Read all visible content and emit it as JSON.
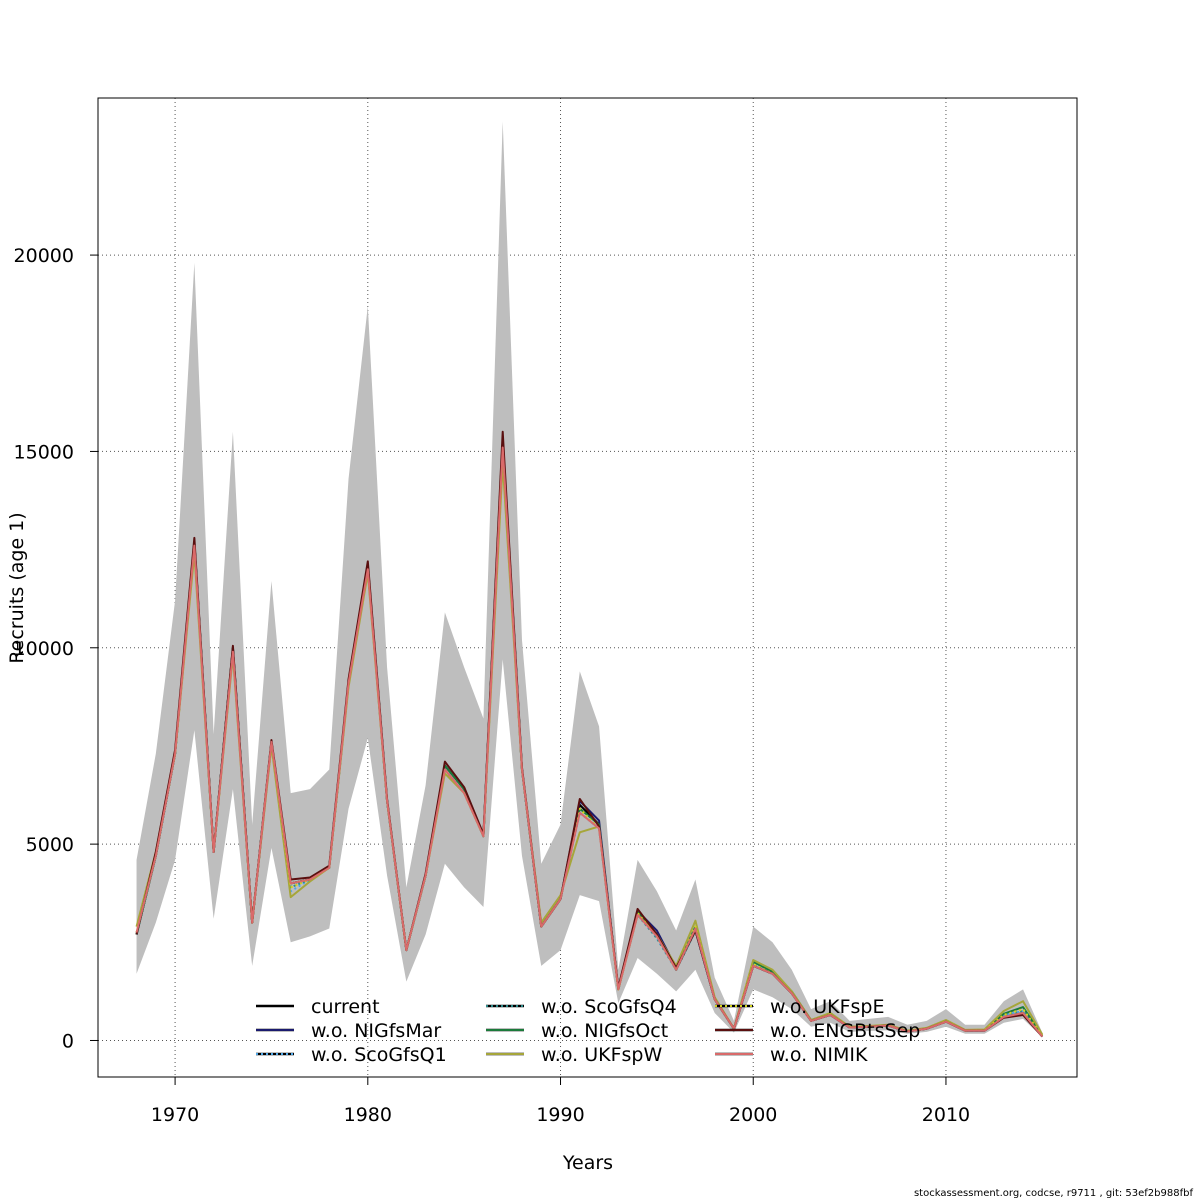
{
  "chart_data": {
    "type": "line",
    "title": "",
    "xlabel": "Years",
    "ylabel": "Recruits (age 1)",
    "xlim": [
      1966,
      2016.8
    ],
    "ylim": [
      -930,
      24000
    ],
    "x_ticks": [
      1970,
      1980,
      1990,
      2000,
      2010
    ],
    "y_ticks": [
      0,
      5000,
      10000,
      15000,
      20000
    ],
    "grid": true,
    "legend_placement": "bottom-center",
    "x": [
      1968,
      1969,
      1970,
      1971,
      1972,
      1973,
      1974,
      1975,
      1976,
      1977,
      1978,
      1979,
      1980,
      1981,
      1982,
      1983,
      1984,
      1985,
      1986,
      1987,
      1988,
      1989,
      1990,
      1991,
      1992,
      1993,
      1994,
      1995,
      1996,
      1997,
      1998,
      1999,
      2000,
      2001,
      2002,
      2003,
      2004,
      2005,
      2006,
      2007,
      2008,
      2009,
      2010,
      2011,
      2012,
      2013,
      2014,
      2015
    ],
    "confidence_band": {
      "color": "#bebebe",
      "upper": [
        4600,
        7300,
        11200,
        19800,
        7800,
        15500,
        5500,
        11700,
        6300,
        6400,
        6900,
        14300,
        18700,
        9500,
        3900,
        6500,
        10900,
        9500,
        8200,
        23400,
        10200,
        4500,
        5500,
        9400,
        8000,
        1800,
        4600,
        3800,
        2800,
        4100,
        1600,
        500,
        2900,
        2500,
        1800,
        800,
        1000,
        500,
        550,
        600,
        400,
        500,
        800,
        400,
        400,
        1000,
        1300,
        200
      ],
      "lower": [
        1700,
        3000,
        4600,
        7900,
        3100,
        6400,
        1900,
        4900,
        2500,
        2650,
        2850,
        5900,
        7700,
        4200,
        1500,
        2700,
        4500,
        3900,
        3400,
        9700,
        4700,
        1900,
        2300,
        3700,
        3550,
        950,
        2100,
        1700,
        1250,
        1800,
        700,
        200,
        1300,
        1100,
        800,
        350,
        450,
        220,
        240,
        260,
        170,
        220,
        350,
        170,
        170,
        450,
        550,
        80
      ]
    },
    "series": [
      {
        "name": "current",
        "color": "#000000",
        "dash": "solid",
        "values": [
          2700,
          4700,
          7300,
          12700,
          4800,
          10000,
          3000,
          7600,
          4000,
          4100,
          4400,
          9100,
          12100,
          6100,
          2300,
          4200,
          7000,
          6400,
          5200,
          15300,
          6900,
          2900,
          3600,
          6000,
          5500,
          1300,
          3300,
          2700,
          1800,
          2800,
          1050,
          300,
          1900,
          1700,
          1200,
          500,
          650,
          330,
          350,
          380,
          230,
          300,
          480,
          250,
          250,
          600,
          700,
          100
        ]
      },
      {
        "name": "w.o. NIGfsMar",
        "color": "#1a1a6e",
        "dash": "solid",
        "values": [
          2700,
          4700,
          7300,
          12700,
          4800,
          10000,
          3000,
          7600,
          4000,
          4100,
          4400,
          9100,
          12100,
          6100,
          2300,
          4200,
          7000,
          6400,
          5200,
          15300,
          6900,
          2900,
          3600,
          6100,
          5600,
          1300,
          3300,
          2800,
          1850,
          2800,
          1050,
          300,
          1900,
          1700,
          1200,
          500,
          650,
          330,
          350,
          380,
          230,
          300,
          480,
          250,
          250,
          600,
          700,
          100
        ]
      },
      {
        "name": "w.o. ScoGfsQ1",
        "color": "#4da6e8",
        "dash": "dotted",
        "values": [
          2700,
          4700,
          7300,
          12600,
          4800,
          9900,
          3000,
          7600,
          3800,
          4100,
          4400,
          9100,
          12000,
          6100,
          2300,
          4200,
          6900,
          6300,
          5200,
          15100,
          6900,
          2900,
          3600,
          5800,
          5400,
          1300,
          3200,
          2600,
          1800,
          2800,
          1050,
          300,
          1900,
          1700,
          1200,
          500,
          650,
          330,
          350,
          380,
          230,
          300,
          480,
          250,
          250,
          650,
          750,
          100
        ]
      },
      {
        "name": "w.o. ScoGfsQ4",
        "color": "#2e8b8b",
        "dash": "dotted",
        "values": [
          2700,
          4700,
          7300,
          12600,
          4800,
          9900,
          3000,
          7600,
          3900,
          4100,
          4400,
          9100,
          12000,
          6100,
          2300,
          4200,
          6900,
          6300,
          5200,
          15100,
          6900,
          2900,
          3600,
          5800,
          5400,
          1300,
          3200,
          2600,
          1800,
          2800,
          1050,
          300,
          1950,
          1700,
          1200,
          500,
          650,
          330,
          350,
          380,
          230,
          300,
          480,
          250,
          250,
          650,
          750,
          100
        ]
      },
      {
        "name": "w.o. NIGfsOct",
        "color": "#1b7a3a",
        "dash": "solid",
        "values": [
          2700,
          4700,
          7300,
          12700,
          4800,
          10000,
          3000,
          7600,
          4000,
          4100,
          4400,
          9100,
          12100,
          6100,
          2300,
          4200,
          7000,
          6400,
          5200,
          15300,
          6900,
          2900,
          3600,
          5900,
          5500,
          1300,
          3300,
          2700,
          1800,
          2900,
          1050,
          300,
          2000,
          1750,
          1250,
          520,
          680,
          350,
          360,
          390,
          240,
          310,
          500,
          260,
          270,
          680,
          850,
          120
        ]
      },
      {
        "name": "w.o. UKFspW",
        "color": "#a6a63a",
        "dash": "solid",
        "values": [
          2900,
          4800,
          7300,
          12400,
          4800,
          9800,
          3000,
          7500,
          3650,
          4050,
          4400,
          9000,
          11900,
          6100,
          2300,
          4200,
          6800,
          6300,
          5200,
          14700,
          6900,
          3000,
          3700,
          5300,
          5450,
          1300,
          3200,
          2700,
          1900,
          3050,
          1100,
          300,
          2050,
          1800,
          1250,
          520,
          700,
          350,
          370,
          400,
          250,
          320,
          520,
          270,
          280,
          750,
          1000,
          150
        ]
      },
      {
        "name": "w.o. UKFspE",
        "color": "#d4d41a",
        "dash": "dotted",
        "values": [
          2750,
          4700,
          7300,
          12600,
          4800,
          9900,
          3000,
          7600,
          3900,
          4100,
          4400,
          9100,
          12000,
          6100,
          2300,
          4200,
          6900,
          6300,
          5200,
          15100,
          6900,
          2900,
          3600,
          5900,
          5400,
          1300,
          3250,
          2650,
          1800,
          2900,
          1050,
          300,
          1950,
          1700,
          1200,
          500,
          660,
          340,
          350,
          380,
          230,
          300,
          490,
          250,
          260,
          650,
          800,
          110
        ]
      },
      {
        "name": "w.o. ENGBtsSep",
        "color": "#5a0f0f",
        "dash": "solid",
        "values": [
          2700,
          4800,
          7400,
          12800,
          4800,
          10050,
          3000,
          7650,
          4100,
          4150,
          4450,
          9200,
          12200,
          6150,
          2300,
          4250,
          7100,
          6450,
          5250,
          15500,
          6950,
          2900,
          3600,
          6150,
          5450,
          1350,
          3350,
          2700,
          1850,
          2800,
          1050,
          300,
          1900,
          1700,
          1200,
          500,
          650,
          330,
          350,
          380,
          230,
          300,
          480,
          250,
          250,
          580,
          650,
          100
        ]
      },
      {
        "name": "w.o. NIMIK",
        "color": "#d96a6a",
        "dash": "solid",
        "values": [
          2750,
          4700,
          7300,
          12600,
          4800,
          9900,
          3000,
          7600,
          4000,
          4100,
          4400,
          9100,
          12000,
          6100,
          2300,
          4200,
          6900,
          6300,
          5200,
          15100,
          6900,
          2900,
          3600,
          5800,
          5400,
          1300,
          3200,
          2650,
          1800,
          2850,
          1050,
          300,
          1900,
          1700,
          1200,
          500,
          650,
          330,
          350,
          380,
          230,
          300,
          480,
          250,
          250,
          600,
          700,
          100
        ]
      }
    ]
  },
  "footer_text": "stockassessment.org, codcse, r9711 , git: 53ef2b988fbf"
}
